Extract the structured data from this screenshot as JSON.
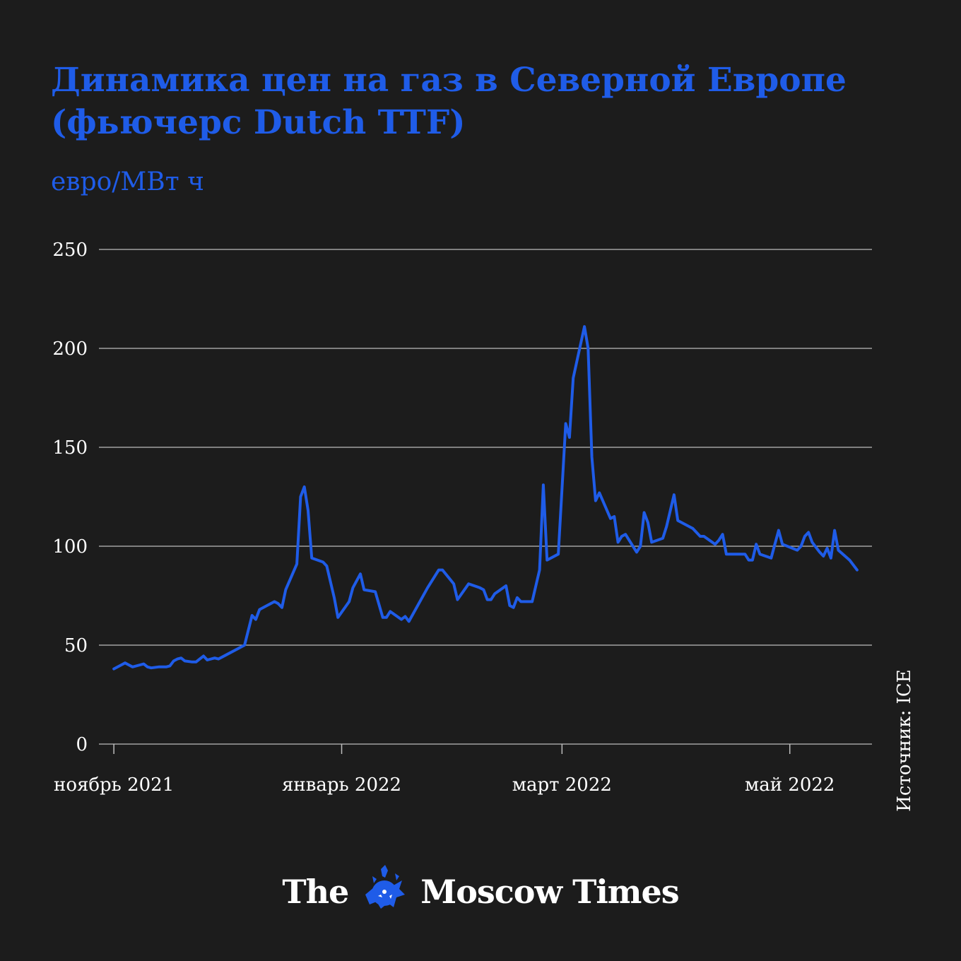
{
  "title": "Динамика цен на газ в Северной Европе (фьючерс Dutch TTF)",
  "subtitle": "евро/МВт ч",
  "source": "Источник: ICE",
  "logo": {
    "left": "The",
    "right": "Moscow Times"
  },
  "colors": {
    "background": "#1c1c1c",
    "accent": "#1f5ce8",
    "grid": "#bdbdbd",
    "text": "#ffffff"
  },
  "chart_data": {
    "type": "line",
    "title": "Динамика цен на газ в Северной Европе (фьючерс Dutch TTF)",
    "ylabel": "евро/МВт ч",
    "xlabel": "",
    "ylim": [
      0,
      250
    ],
    "xlim": [
      "2021-10-28",
      "2022-05-23"
    ],
    "yticks": [
      0,
      50,
      100,
      150,
      200,
      250
    ],
    "xticks": [
      {
        "date": "2021-11-01",
        "label": "ноябрь 2021"
      },
      {
        "date": "2022-01-01",
        "label": "январь 2022"
      },
      {
        "date": "2022-03-01",
        "label": "март 2022"
      },
      {
        "date": "2022-05-01",
        "label": "май 2022"
      }
    ],
    "grid": true,
    "series": [
      {
        "color": "#1f5ce8",
        "points": [
          [
            "2021-11-01",
            38
          ],
          [
            "2021-11-03",
            40
          ],
          [
            "2021-11-04",
            41
          ],
          [
            "2021-11-05",
            40
          ],
          [
            "2021-11-06",
            39
          ],
          [
            "2021-11-08",
            40
          ],
          [
            "2021-11-09",
            40.5
          ],
          [
            "2021-11-10",
            39
          ],
          [
            "2021-11-11",
            38.5
          ],
          [
            "2021-11-13",
            39
          ],
          [
            "2021-11-15",
            39
          ],
          [
            "2021-11-16",
            39.5
          ],
          [
            "2021-11-17",
            42
          ],
          [
            "2021-11-18",
            43
          ],
          [
            "2021-11-19",
            43.5
          ],
          [
            "2021-11-20",
            42
          ],
          [
            "2021-11-22",
            41.5
          ],
          [
            "2021-11-23",
            41.5
          ],
          [
            "2021-11-24",
            43
          ],
          [
            "2021-11-25",
            44.5
          ],
          [
            "2021-11-26",
            42.5
          ],
          [
            "2021-11-28",
            43.5
          ],
          [
            "2021-11-29",
            43
          ],
          [
            "2021-11-30",
            44
          ],
          [
            "2021-12-02",
            46
          ],
          [
            "2021-12-06",
            50
          ],
          [
            "2021-12-08",
            65
          ],
          [
            "2021-12-09",
            63
          ],
          [
            "2021-12-10",
            68
          ],
          [
            "2021-12-12",
            70
          ],
          [
            "2021-12-14",
            72
          ],
          [
            "2021-12-15",
            71
          ],
          [
            "2021-12-16",
            69
          ],
          [
            "2021-12-17",
            78
          ],
          [
            "2021-12-20",
            91
          ],
          [
            "2021-12-21",
            125
          ],
          [
            "2021-12-22",
            130
          ],
          [
            "2021-12-23",
            118
          ],
          [
            "2021-12-24",
            94
          ],
          [
            "2021-12-27",
            92
          ],
          [
            "2021-12-28",
            90
          ],
          [
            "2021-12-30",
            74
          ],
          [
            "2021-12-31",
            64
          ],
          [
            "2022-01-03",
            72
          ],
          [
            "2022-01-04",
            79
          ],
          [
            "2022-01-06",
            86
          ],
          [
            "2022-01-07",
            78
          ],
          [
            "2022-01-10",
            77
          ],
          [
            "2022-01-12",
            64
          ],
          [
            "2022-01-13",
            64
          ],
          [
            "2022-01-14",
            67
          ],
          [
            "2022-01-17",
            63
          ],
          [
            "2022-01-18",
            64.5
          ],
          [
            "2022-01-19",
            62
          ],
          [
            "2022-01-24",
            79
          ],
          [
            "2022-01-27",
            88
          ],
          [
            "2022-01-28",
            88
          ],
          [
            "2022-01-31",
            81
          ],
          [
            "2022-02-01",
            73
          ],
          [
            "2022-02-04",
            81
          ],
          [
            "2022-02-07",
            79
          ],
          [
            "2022-02-08",
            78
          ],
          [
            "2022-02-09",
            73
          ],
          [
            "2022-02-10",
            73
          ],
          [
            "2022-02-11",
            76
          ],
          [
            "2022-02-14",
            80
          ],
          [
            "2022-02-15",
            70
          ],
          [
            "2022-02-16",
            69
          ],
          [
            "2022-02-17",
            74
          ],
          [
            "2022-02-18",
            72
          ],
          [
            "2022-02-21",
            72
          ],
          [
            "2022-02-23",
            88
          ],
          [
            "2022-02-24",
            131
          ],
          [
            "2022-02-25",
            93
          ],
          [
            "2022-02-28",
            96
          ],
          [
            "2022-03-02",
            162
          ],
          [
            "2022-03-03",
            155
          ],
          [
            "2022-03-04",
            185
          ],
          [
            "2022-03-07",
            211
          ],
          [
            "2022-03-08",
            200
          ],
          [
            "2022-03-09",
            145
          ],
          [
            "2022-03-10",
            123
          ],
          [
            "2022-03-11",
            127
          ],
          [
            "2022-03-14",
            114
          ],
          [
            "2022-03-15",
            115
          ],
          [
            "2022-03-16",
            102
          ],
          [
            "2022-03-17",
            105
          ],
          [
            "2022-03-18",
            106
          ],
          [
            "2022-03-21",
            97
          ],
          [
            "2022-03-22",
            100
          ],
          [
            "2022-03-23",
            117
          ],
          [
            "2022-03-24",
            112
          ],
          [
            "2022-03-25",
            102
          ],
          [
            "2022-03-28",
            104
          ],
          [
            "2022-03-29",
            110
          ],
          [
            "2022-03-31",
            126
          ],
          [
            "2022-04-01",
            113
          ],
          [
            "2022-04-04",
            110
          ],
          [
            "2022-04-05",
            109
          ],
          [
            "2022-04-07",
            105
          ],
          [
            "2022-04-08",
            105
          ],
          [
            "2022-04-11",
            101
          ],
          [
            "2022-04-12",
            103
          ],
          [
            "2022-04-13",
            106
          ],
          [
            "2022-04-14",
            96
          ],
          [
            "2022-04-19",
            96
          ],
          [
            "2022-04-20",
            93
          ],
          [
            "2022-04-21",
            93
          ],
          [
            "2022-04-22",
            101
          ],
          [
            "2022-04-23",
            96
          ],
          [
            "2022-04-26",
            94
          ],
          [
            "2022-04-27",
            101
          ],
          [
            "2022-04-28",
            108
          ],
          [
            "2022-04-29",
            101
          ],
          [
            "2022-05-03",
            98
          ],
          [
            "2022-05-04",
            100
          ],
          [
            "2022-05-05",
            105
          ],
          [
            "2022-05-06",
            107
          ],
          [
            "2022-05-07",
            102
          ],
          [
            "2022-05-09",
            97
          ],
          [
            "2022-05-10",
            95
          ],
          [
            "2022-05-11",
            99
          ],
          [
            "2022-05-12",
            94
          ],
          [
            "2022-05-13",
            108
          ],
          [
            "2022-05-14",
            98
          ],
          [
            "2022-05-17",
            93
          ],
          [
            "2022-05-19",
            88
          ]
        ]
      }
    ]
  }
}
